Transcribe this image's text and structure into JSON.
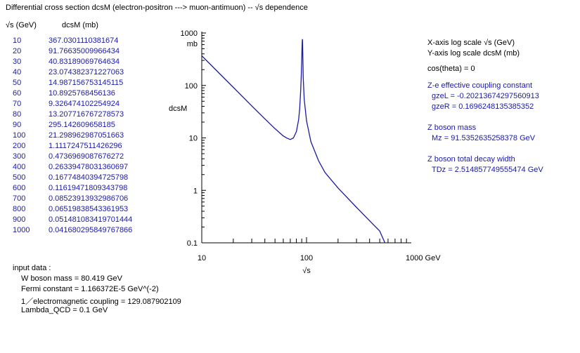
{
  "title": "Differential cross section  dcsM (electron-positron ---> muon-antimuon) -- √s dependence",
  "table": {
    "header_x": "√s  (GeV)",
    "header_y": "dcsM  (mb)",
    "rows": [
      [
        "10",
        "367.0301110381674"
      ],
      [
        "20",
        "91.76635009966434"
      ],
      [
        "30",
        "40.83189069764634"
      ],
      [
        "40",
        "23.074382371227063"
      ],
      [
        "50",
        "14.987156753145115"
      ],
      [
        "60",
        "10.8925768456136"
      ],
      [
        "70",
        "9.326474102254924"
      ],
      [
        "80",
        "13.207716767278573"
      ],
      [
        "90",
        "295.142609658185"
      ],
      [
        "100",
        "21.298962987051663"
      ],
      [
        "200",
        "1.1117247511426296"
      ],
      [
        "300",
        "0.4736969087676272"
      ],
      [
        "400",
        "0.26339478031360697"
      ],
      [
        "500",
        "0.16774840394725798"
      ],
      [
        "600",
        "0.11619471809343798"
      ],
      [
        "700",
        "0.08523913932986706"
      ],
      [
        "800",
        "0.06519838543361953"
      ],
      [
        "900",
        "0.051481083419701444"
      ],
      [
        "1000",
        "0.041680295849767866"
      ]
    ]
  },
  "input": {
    "heading": "input data :",
    "w_mass": "W boson mass = 80.419 GeV",
    "fermi": "Fermi constant = 1.166372E-5 GeV^(-2)",
    "em": "1／electromagnetic coupling = 129.087902109",
    "lambda": "Lambda_QCD = 0.1 GeV"
  },
  "info": {
    "xscale": "X-axis log scale  √s (GeV)",
    "yscale": "Y-axis log scale  dcsM (mb)",
    "cos": "cos(theta) = 0",
    "coupling_title": "Z-e effective coupling constant",
    "gzel": "gzeL = -0.20213674297560913",
    "gzer": "gzeR = 0.1696248135385352",
    "mass_title": "Z boson mass",
    "mz": "Mz = 91.5352635258378 GeV",
    "width_title": "Z boson total decay width",
    "tdz": "TDz = 2.514857749555474 GeV"
  },
  "chart_data": {
    "type": "line",
    "xscale": "log",
    "yscale": "log",
    "xlim": [
      10,
      1000
    ],
    "ylim": [
      0.1,
      1000
    ],
    "xlabel": "√s",
    "ylabel": "dcsM",
    "y_unit": "mb",
    "x_ticks": [
      "10",
      "100",
      "1000 GeV"
    ],
    "y_ticks": [
      "1000",
      "100",
      "10",
      "1",
      "0.1"
    ],
    "grid": false,
    "line_color": "#1a1aa6",
    "series": [
      {
        "x": [
          10,
          20,
          30,
          40,
          50,
          60,
          65,
          70,
          75,
          80,
          84,
          86,
          88,
          89,
          90,
          90.5,
          91,
          91.3,
          91.5,
          91.7,
          92,
          92.5,
          93,
          95,
          100,
          110,
          130,
          150,
          200,
          300,
          400,
          500,
          560
        ],
        "y": [
          367,
          91.8,
          40.8,
          23.1,
          15.0,
          10.9,
          9.9,
          9.33,
          10.0,
          13.2,
          22,
          35,
          80,
          150,
          295,
          480,
          680,
          750,
          740,
          620,
          450,
          250,
          140,
          55,
          21.3,
          8.5,
          3.7,
          2.2,
          1.11,
          0.474,
          0.263,
          0.168,
          0.1
        ]
      }
    ]
  }
}
